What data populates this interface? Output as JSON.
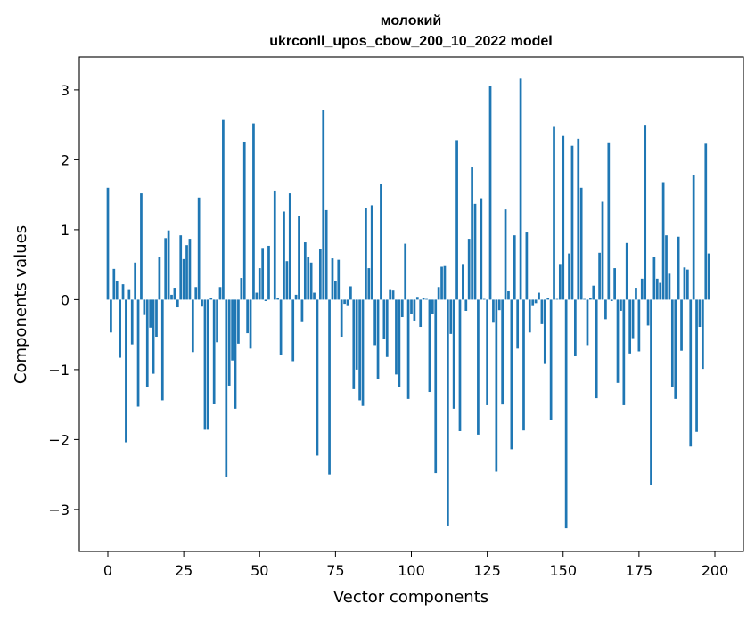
{
  "chart_data": {
    "type": "bar",
    "title": "молокий",
    "subtitle": "ukrconll_upos_cbow_200_10_2022 model",
    "xlabel": "Vector components",
    "ylabel": "Components values",
    "xlim": [
      -9.4,
      209.4
    ],
    "ylim": [
      -3.6,
      3.47
    ],
    "xticks": [
      0,
      25,
      50,
      75,
      100,
      125,
      150,
      175,
      200
    ],
    "yticks": [
      -3,
      -2,
      -1,
      0,
      1,
      2,
      3
    ],
    "ytick_labels": [
      "−3",
      "−2",
      "−1",
      "0",
      "1",
      "2",
      "3"
    ],
    "grid": false,
    "colors": {
      "bar": "#1f77b4"
    },
    "values": [
      1.6,
      -0.47,
      0.44,
      0.26,
      -0.83,
      0.22,
      -2.04,
      0.15,
      -0.64,
      0.53,
      -1.53,
      1.52,
      -0.22,
      -1.25,
      -0.4,
      -1.06,
      -0.53,
      0.61,
      -1.44,
      0.88,
      0.99,
      0.07,
      0.17,
      -0.11,
      0.92,
      0.58,
      0.78,
      0.87,
      -0.75,
      0.18,
      1.46,
      -0.1,
      -1.86,
      -1.86,
      0.03,
      -1.49,
      -0.61,
      0.18,
      2.57,
      -2.53,
      -1.23,
      -0.87,
      -1.56,
      -0.63,
      0.31,
      2.26,
      -0.48,
      -0.7,
      2.52,
      0.1,
      0.45,
      0.74,
      -0.02,
      0.77,
      0.0,
      1.56,
      0.03,
      -0.79,
      1.26,
      0.55,
      1.52,
      -0.88,
      0.07,
      1.19,
      -0.31,
      0.82,
      0.61,
      0.53,
      0.1,
      -2.23,
      0.72,
      2.71,
      1.28,
      -2.5,
      0.59,
      0.27,
      0.57,
      -0.53,
      -0.06,
      -0.08,
      0.19,
      -1.28,
      -1.0,
      -1.44,
      -1.52,
      1.31,
      0.45,
      1.35,
      -0.65,
      -1.13,
      1.66,
      -0.56,
      -0.82,
      0.15,
      0.13,
      -1.07,
      -1.25,
      -0.25,
      0.8,
      -1.42,
      -0.21,
      -0.3,
      0.04,
      -0.39,
      0.03,
      0.01,
      -1.32,
      -0.2,
      -2.48,
      0.18,
      0.47,
      0.48,
      -3.23,
      -0.49,
      -1.56,
      2.28,
      -1.88,
      0.51,
      -0.16,
      0.87,
      1.89,
      1.37,
      -1.93,
      1.45,
      0.01,
      -1.51,
      3.05,
      -0.33,
      -2.46,
      -0.15,
      -1.5,
      1.29,
      0.12,
      -2.14,
      0.92,
      -0.7,
      3.16,
      -1.87,
      0.96,
      -0.47,
      -0.08,
      -0.05,
      0.1,
      -0.35,
      -0.92,
      0.02,
      -1.72,
      2.47,
      0.01,
      0.51,
      2.34,
      -3.27,
      0.66,
      2.2,
      -0.81,
      2.3,
      1.6,
      0.01,
      -0.65,
      0.03,
      0.2,
      -1.41,
      0.67,
      1.4,
      -0.28,
      2.25,
      -0.02,
      0.45,
      -1.19,
      -0.16,
      -1.51,
      0.81,
      -0.77,
      -0.55,
      0.17,
      -0.74,
      0.3,
      2.5,
      -0.37,
      -2.65,
      0.61,
      0.3,
      0.24,
      1.68,
      0.92,
      0.37,
      -1.25,
      -1.42,
      0.9,
      -0.73,
      0.46,
      0.43,
      -2.1,
      1.78,
      -1.89,
      -0.39,
      -0.99,
      2.23,
      0.66
    ]
  }
}
